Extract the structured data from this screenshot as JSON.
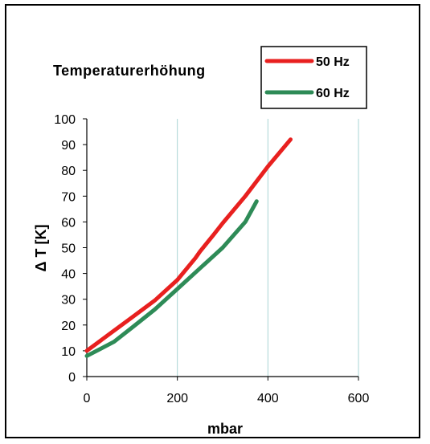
{
  "chart_data": {
    "type": "line",
    "title": "Temperaturerhöhung",
    "xlabel": "mbar",
    "ylabel": "Δ T [K]",
    "xlim": [
      0,
      600
    ],
    "ylim": [
      0,
      100
    ],
    "xticks": [
      0,
      200,
      400,
      600
    ],
    "yticks": [
      0,
      10,
      20,
      30,
      40,
      50,
      60,
      70,
      80,
      90,
      100
    ],
    "grid": "vertical lines at x ticks",
    "legend_placement": "top-right",
    "series": [
      {
        "name": "50 Hz",
        "color": "#e8201f",
        "x": [
          0,
          50,
          100,
          150,
          200,
          240,
          250,
          280,
          300,
          350,
          400,
          450
        ],
        "y": [
          10,
          16.5,
          23,
          29.5,
          37.5,
          46,
          48.5,
          55,
          59.5,
          70,
          81.5,
          92
        ]
      },
      {
        "name": "60 Hz",
        "color": "#2e8b57",
        "x": [
          0,
          60,
          100,
          150,
          200,
          250,
          300,
          350,
          375
        ],
        "y": [
          8,
          13.5,
          19,
          26,
          34,
          42,
          50,
          60,
          68
        ]
      }
    ]
  }
}
